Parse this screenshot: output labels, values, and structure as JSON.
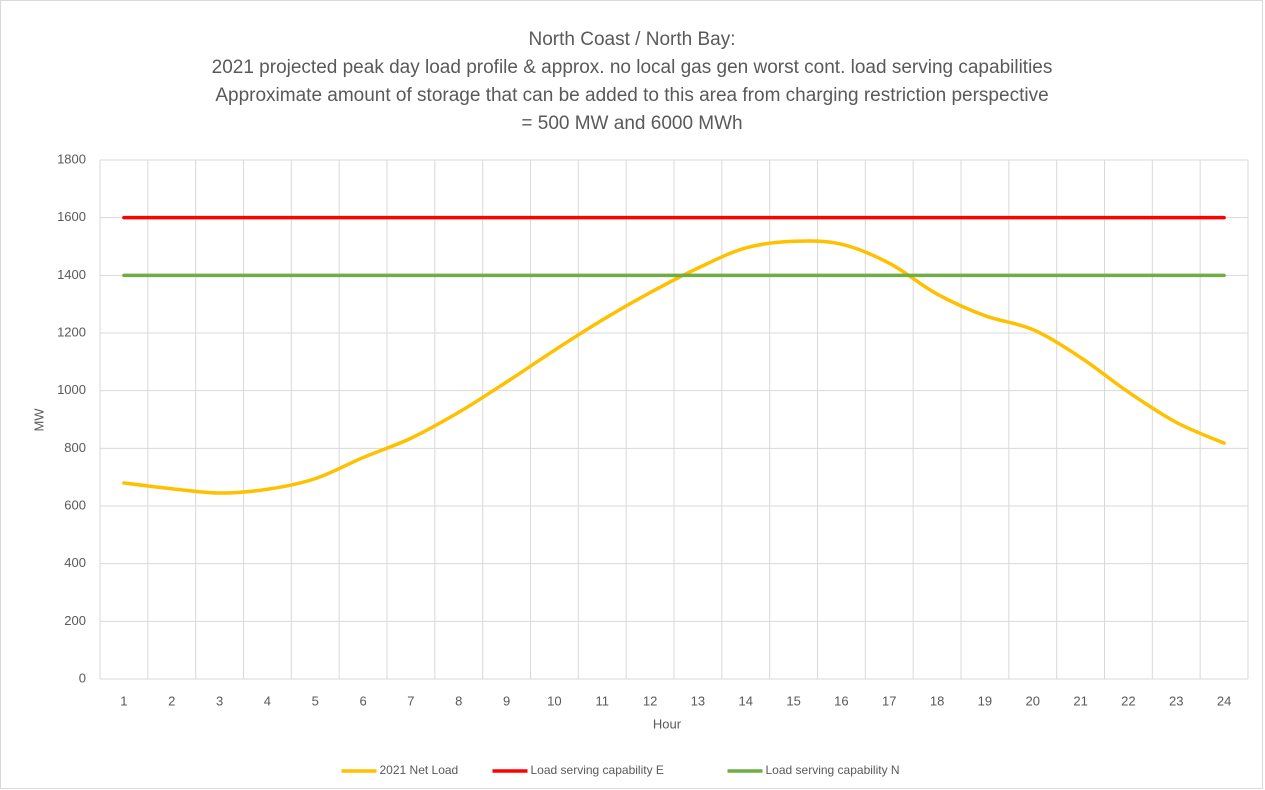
{
  "chart_data": {
    "type": "line",
    "title": [
      "North Coast / North Bay:",
      "2021 projected peak day load profile & approx. no local gas gen worst cont. load serving capabilities",
      "Approximate amount of storage that can be added to this area from charging restriction perspective",
      "= 500 MW and 6000 MWh"
    ],
    "x_label": "Hour",
    "y_label": "MW",
    "categories": [
      "1",
      "2",
      "3",
      "4",
      "5",
      "6",
      "7",
      "8",
      "9",
      "10",
      "11",
      "12",
      "13",
      "14",
      "15",
      "16",
      "17",
      "18",
      "19",
      "20",
      "21",
      "22",
      "23",
      "24"
    ],
    "series": [
      {
        "name": "2021 Net Load",
        "color": "#ffc000",
        "values": [
          680,
          660,
          645,
          658,
          695,
          768,
          835,
          925,
          1030,
          1140,
          1245,
          1340,
          1425,
          1495,
          1518,
          1508,
          1442,
          1335,
          1260,
          1212,
          1115,
          995,
          890,
          818
        ]
      },
      {
        "name": "Load serving capability E",
        "color": "#ff0000",
        "values": [
          1600,
          1600,
          1600,
          1600,
          1600,
          1600,
          1600,
          1600,
          1600,
          1600,
          1600,
          1600,
          1600,
          1600,
          1600,
          1600,
          1600,
          1600,
          1600,
          1600,
          1600,
          1600,
          1600,
          1600
        ]
      },
      {
        "name": "Load serving capability N",
        "color": "#70ad47",
        "values": [
          1400,
          1400,
          1400,
          1400,
          1400,
          1400,
          1400,
          1400,
          1400,
          1400,
          1400,
          1400,
          1400,
          1400,
          1400,
          1400,
          1400,
          1400,
          1400,
          1400,
          1400,
          1400,
          1400,
          1400
        ]
      }
    ],
    "ylim": [
      0,
      1800
    ],
    "yticks": [
      0,
      200,
      400,
      600,
      800,
      1000,
      1200,
      1400,
      1600,
      1800
    ],
    "grid": true,
    "legend": "bottom"
  }
}
